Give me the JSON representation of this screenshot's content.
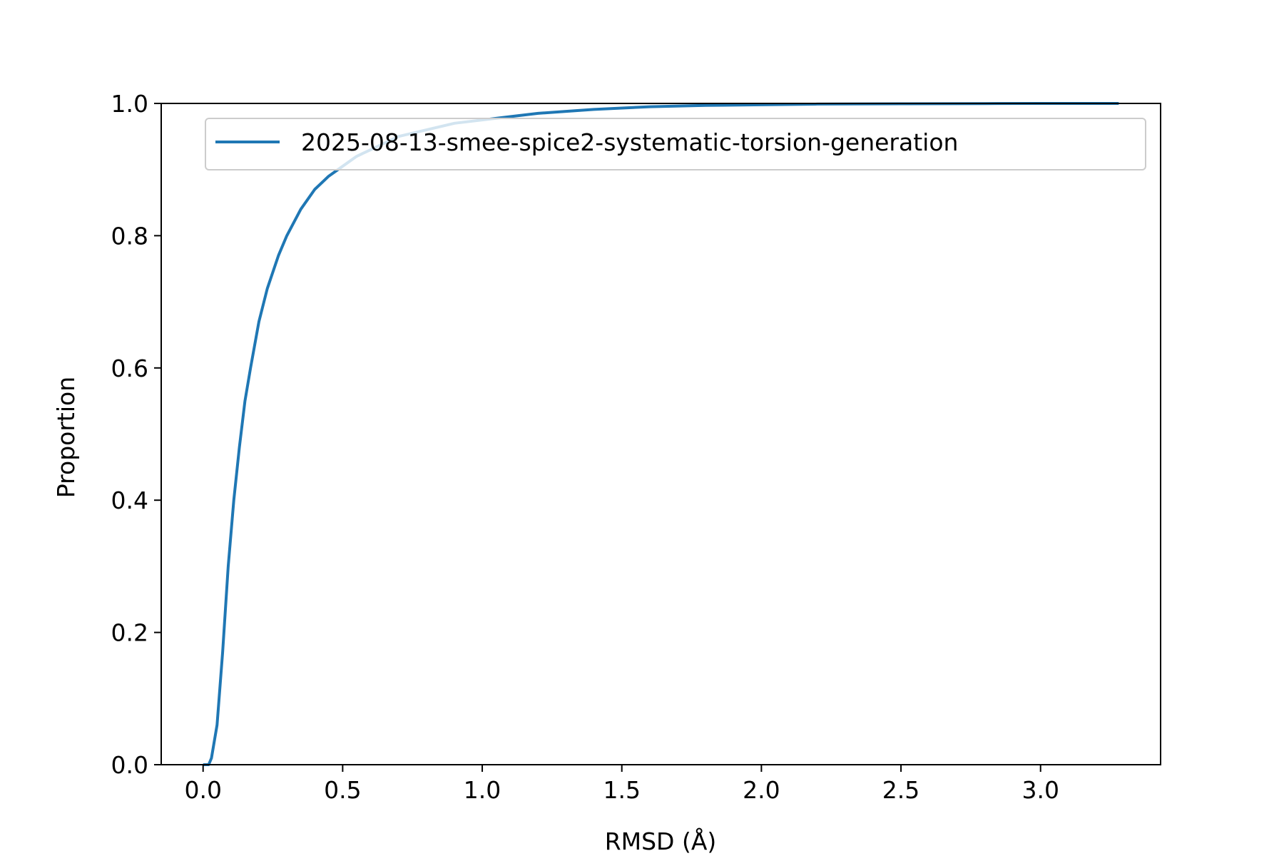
{
  "chart_data": {
    "type": "line",
    "title": "",
    "xlabel": "RMSD (Å)",
    "ylabel": "Proportion",
    "xlim": [
      -0.15,
      3.43
    ],
    "ylim": [
      0.0,
      1.0
    ],
    "x_ticks": [
      0.0,
      0.5,
      1.0,
      1.5,
      2.0,
      2.5,
      3.0
    ],
    "x_tick_labels": [
      "0.0",
      "0.5",
      "1.0",
      "1.5",
      "2.0",
      "2.5",
      "3.0"
    ],
    "y_ticks": [
      0.0,
      0.2,
      0.4,
      0.6,
      0.8,
      1.0
    ],
    "y_tick_labels": [
      "0.0",
      "0.2",
      "0.4",
      "0.6",
      "0.8",
      "1.0"
    ],
    "grid": false,
    "legend_position": "top-right",
    "series": [
      {
        "name": "2025-08-13-smee-spice2-systematic-torsion-generation",
        "color": "#1f77b4",
        "x": [
          0.0,
          0.02,
          0.03,
          0.05,
          0.07,
          0.09,
          0.11,
          0.13,
          0.15,
          0.17,
          0.2,
          0.23,
          0.27,
          0.3,
          0.35,
          0.4,
          0.45,
          0.5,
          0.55,
          0.6,
          0.7,
          0.8,
          0.9,
          1.0,
          1.1,
          1.2,
          1.3,
          1.4,
          1.5,
          1.6,
          1.8,
          2.0,
          2.2,
          2.5,
          2.8,
          3.0,
          3.28
        ],
        "y": [
          0.0,
          0.0,
          0.01,
          0.06,
          0.17,
          0.3,
          0.4,
          0.48,
          0.55,
          0.6,
          0.67,
          0.72,
          0.77,
          0.8,
          0.84,
          0.87,
          0.89,
          0.905,
          0.92,
          0.93,
          0.95,
          0.96,
          0.97,
          0.975,
          0.98,
          0.985,
          0.988,
          0.991,
          0.993,
          0.995,
          0.997,
          0.998,
          0.999,
          0.9995,
          0.9998,
          1.0,
          1.0
        ]
      }
    ]
  }
}
